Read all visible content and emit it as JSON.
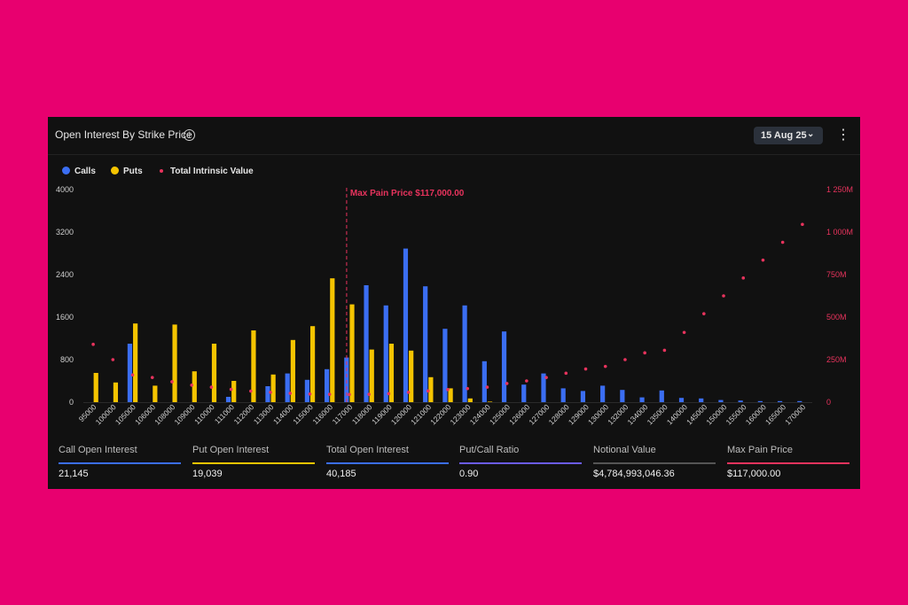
{
  "header": {
    "title": "Open Interest By Strike Price",
    "info_icon": "info-icon",
    "date_selector": "15 Aug 25",
    "chevron_icon": "chevron-down-icon",
    "menu_icon": "kebab-menu-icon"
  },
  "legend": [
    {
      "label": "Calls",
      "color": "#3b6ef2"
    },
    {
      "label": "Puts",
      "color": "#f5c400"
    },
    {
      "label": "Total Intrinsic Value",
      "color": "#e8335d"
    }
  ],
  "chart_data": {
    "type": "bar",
    "max_pain_label": "Max Pain Price $117,000.00",
    "max_pain_strike": "117000",
    "categories": [
      "95000",
      "100000",
      "105000",
      "106000",
      "108000",
      "109000",
      "110000",
      "111000",
      "112000",
      "113000",
      "114000",
      "115000",
      "116000",
      "117000",
      "118000",
      "119000",
      "120000",
      "121000",
      "122000",
      "123000",
      "124000",
      "125000",
      "126000",
      "127000",
      "128000",
      "129000",
      "130000",
      "132000",
      "134000",
      "135000",
      "140000",
      "145000",
      "150000",
      "155000",
      "160000",
      "165000",
      "170000"
    ],
    "series": [
      {
        "name": "Calls",
        "axis": "left",
        "values": [
          0,
          0,
          1100,
          0,
          0,
          0,
          0,
          100,
          0,
          300,
          540,
          420,
          620,
          840,
          2200,
          1820,
          2890,
          2180,
          1380,
          1820,
          770,
          1330,
          330,
          540,
          260,
          210,
          310,
          230,
          90,
          220,
          80,
          70,
          40,
          30,
          20,
          20,
          20
        ]
      },
      {
        "name": "Puts",
        "axis": "left",
        "values": [
          550,
          370,
          1480,
          310,
          1460,
          580,
          1100,
          400,
          1350,
          520,
          1170,
          1430,
          2330,
          1840,
          990,
          1100,
          970,
          470,
          260,
          70,
          10,
          0,
          0,
          0,
          0,
          0,
          0,
          0,
          0,
          0,
          0,
          0,
          0,
          0,
          0,
          0,
          0
        ]
      },
      {
        "name": "Total Intrinsic Value",
        "axis": "right",
        "type": "scatter",
        "values": [
          340,
          250,
          160,
          145,
          120,
          100,
          88,
          75,
          65,
          58,
          52,
          48,
          46,
          45,
          46,
          50,
          58,
          66,
          74,
          80,
          88,
          110,
          125,
          145,
          170,
          195,
          210,
          250,
          290,
          305,
          410,
          520,
          625,
          730,
          835,
          940,
          1045
        ]
      }
    ],
    "y_left": {
      "ticks": [
        "0",
        "800",
        "1600",
        "2400",
        "3200",
        "4000"
      ],
      "range": [
        0,
        4000
      ]
    },
    "y_right": {
      "ticks": [
        "0",
        "250M",
        "500M",
        "750M",
        "1 000M",
        "1 250M"
      ],
      "range": [
        0,
        1250
      ]
    },
    "grid": false
  },
  "stats": [
    {
      "label": "Call Open Interest",
      "value": "21,145",
      "color": "#3b6ef2"
    },
    {
      "label": "Put Open Interest",
      "value": "19,039",
      "color": "#f5c400"
    },
    {
      "label": "Total Open Interest",
      "value": "40,185",
      "color": "#3b6ef2"
    },
    {
      "label": "Put/Call Ratio",
      "value": "0.90",
      "color": "#6b5cf0"
    },
    {
      "label": "Notional Value",
      "value": "$4,784,993,046.36",
      "color": "#555555"
    },
    {
      "label": "Max Pain Price",
      "value": "$117,000.00",
      "color": "#e8335d"
    }
  ]
}
